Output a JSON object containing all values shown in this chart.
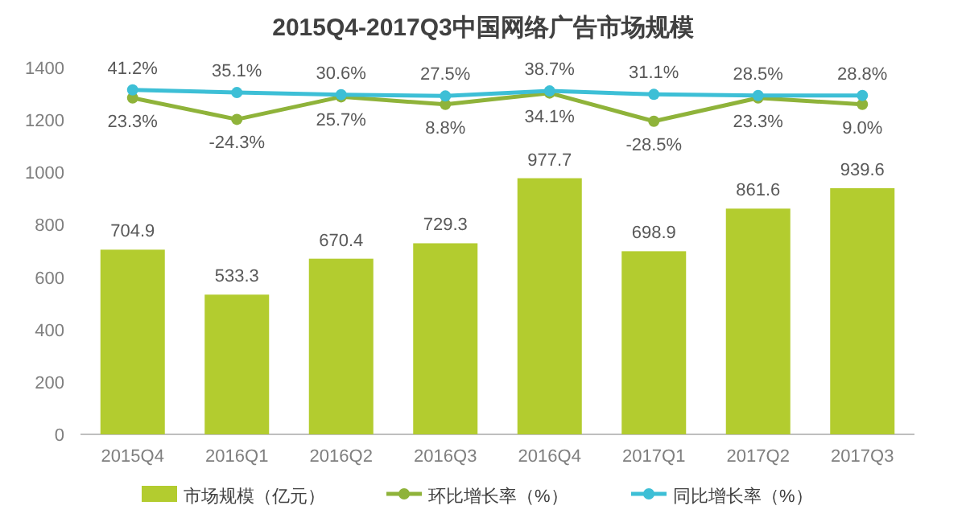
{
  "chart_data": {
    "type": "bar",
    "title": "2015Q4-2017Q3中国网络广告市场规模",
    "categories": [
      "2015Q4",
      "2016Q1",
      "2016Q2",
      "2016Q3",
      "2016Q4",
      "2017Q1",
      "2017Q2",
      "2017Q3"
    ],
    "series": [
      {
        "name": "市场规模（亿元）",
        "color": "#b3cc2f",
        "values": [
          704.9,
          533.3,
          670.4,
          729.3,
          977.7,
          698.9,
          861.6,
          939.6
        ],
        "value_labels": [
          "704.9",
          "533.3",
          "670.4",
          "729.3",
          "977.7",
          "698.9",
          "861.6",
          "939.6"
        ]
      },
      {
        "name": "环比增长率（%）",
        "type": "line",
        "axis": "y2",
        "color": "#8fb33a",
        "values": [
          23.3,
          -24.3,
          25.7,
          8.8,
          34.1,
          -28.5,
          23.3,
          9.0
        ],
        "value_labels": [
          "23.3%",
          "-24.3%",
          "25.7%",
          "8.8%",
          "34.1%",
          "-28.5%",
          "23.3%",
          "9.0%"
        ]
      },
      {
        "name": "同比增长率（%）",
        "type": "line",
        "axis": "y2",
        "color": "#3dbfd6",
        "values": [
          41.2,
          35.1,
          30.6,
          27.5,
          38.7,
          31.1,
          28.5,
          28.8
        ],
        "value_labels": [
          "41.2%",
          "35.1%",
          "30.6%",
          "27.5%",
          "38.7%",
          "31.1%",
          "28.5%",
          "28.8%"
        ]
      }
    ],
    "ylim": [
      0,
      1400
    ],
    "yticks": [
      0,
      200,
      400,
      600,
      800,
      1000,
      1200,
      1400
    ],
    "marker": "circle",
    "legend": "bottom"
  }
}
